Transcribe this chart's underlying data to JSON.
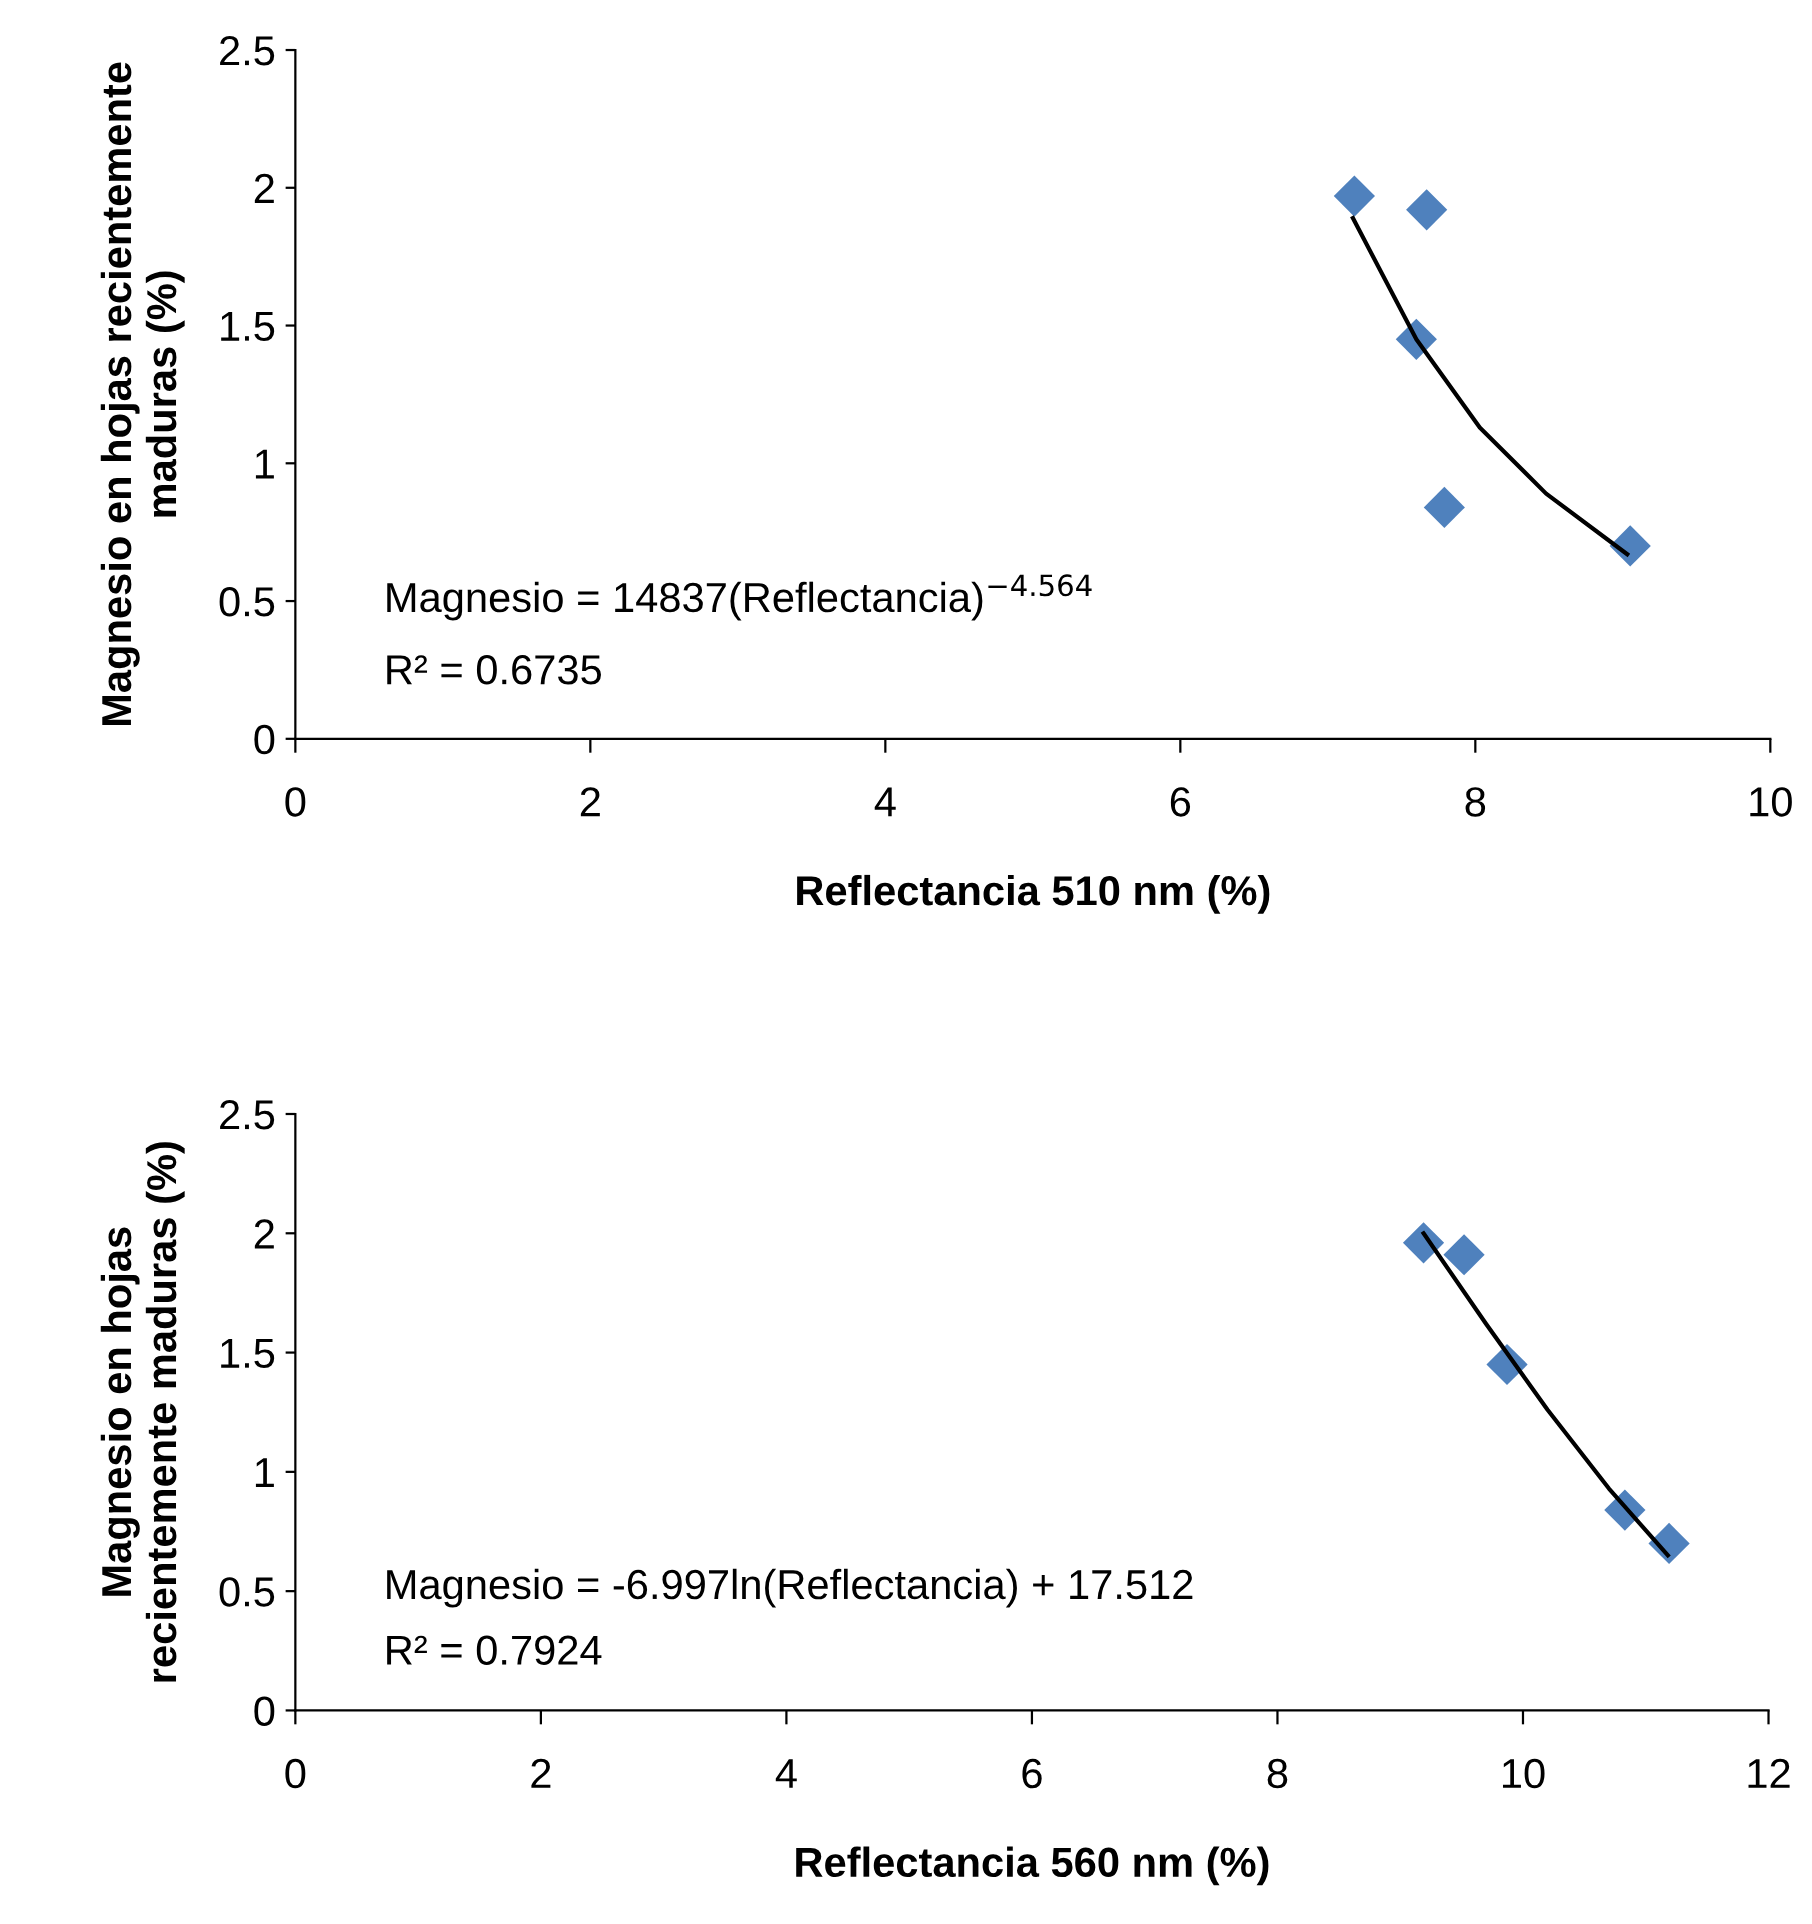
{
  "chart_data": [
    {
      "type": "scatter",
      "xlabel": "Reflectancia 510 nm (%)",
      "ylabel": "Magnesio en hojas recientemente\nmaduras (%)",
      "marker": "diamond",
      "grid": false,
      "legend": false,
      "xlim": [
        0,
        10
      ],
      "xticks": [
        0,
        2,
        4,
        6,
        8,
        10
      ],
      "ylim": [
        0,
        2.5
      ],
      "yticks": [
        0,
        0.5,
        1,
        1.5,
        2,
        2.5
      ],
      "series": [
        {
          "color": "#4f81bd",
          "x": [
            7.18,
            7.67,
            7.6,
            7.79,
            9.05
          ],
          "values": [
            1.97,
            1.92,
            1.45,
            0.84,
            0.7
          ]
        },
        {
          "type": "line",
          "color": "#000000",
          "marker": "none",
          "x": [
            7.17,
            7.6,
            8.03,
            8.48,
            9.03
          ],
          "values": [
            1.89,
            1.45,
            1.13,
            0.89,
            0.67
          ]
        }
      ],
      "annotations": [
        "Magnesio = 14837(Reflectancia)$^{−4.564}$",
        "R² = 0.6735"
      ]
    },
    {
      "type": "scatter",
      "xlabel": "Reflectancia 560 nm (%)",
      "ylabel": "Magnesio en hojas\nrecientemente maduras (%)",
      "marker": "diamond",
      "grid": false,
      "legend": false,
      "xlim": [
        0,
        12
      ],
      "xticks": [
        0,
        2,
        4,
        6,
        8,
        10,
        12
      ],
      "ylim": [
        0,
        2.5
      ],
      "yticks": [
        0,
        0.5,
        1,
        1.5,
        2,
        2.5
      ],
      "series": [
        {
          "color": "#4f81bd",
          "x": [
            9.19,
            9.52,
            9.87,
            10.83,
            11.19
          ],
          "values": [
            1.96,
            1.91,
            1.45,
            0.84,
            0.7
          ]
        },
        {
          "type": "line",
          "color": "#000000",
          "marker": "none",
          "x": [
            9.19,
            9.7,
            10.2,
            10.7,
            11.18
          ],
          "values": [
            2.0,
            1.62,
            1.26,
            0.93,
            0.65
          ]
        }
      ],
      "annotations": [
        "Magnesio = -6.997ln(Reflectancia) + 17.512",
        "R² = 0.7924"
      ]
    }
  ]
}
